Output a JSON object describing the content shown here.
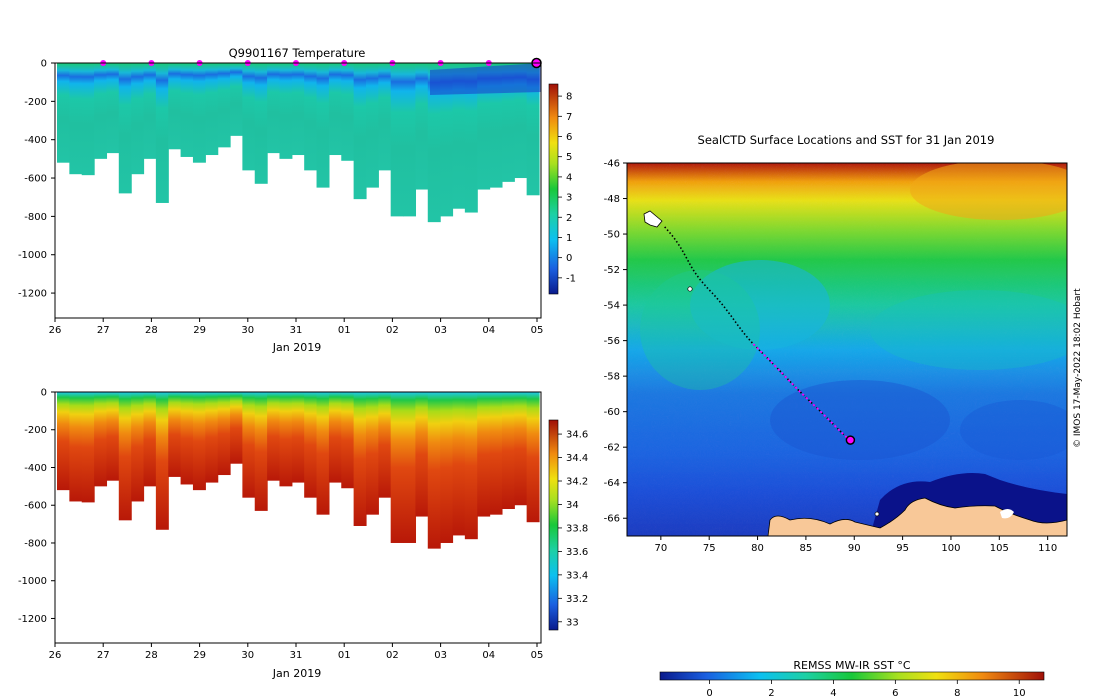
{
  "chart_data": [
    {
      "id": "temp",
      "type": "heatmap",
      "title": "Q9901167  Temperature",
      "xlabel": "Jan 2019",
      "ylabel": "",
      "x_ticks": [
        "26",
        "27",
        "28",
        "29",
        "30",
        "31",
        "01",
        "02",
        "03",
        "04",
        "05"
      ],
      "y_ticks": [
        0,
        -200,
        -400,
        -600,
        -800,
        -1000,
        -1200
      ],
      "ylim": [
        -1330,
        0
      ],
      "colorbar": {
        "min": -1.8,
        "max": 8.6,
        "ticks": [
          8,
          7,
          6,
          5,
          4,
          3,
          2,
          1,
          0,
          -1
        ]
      },
      "profile_markers_day": [
        1,
        2,
        3,
        4,
        5,
        6,
        7,
        8,
        9
      ],
      "final_marker_day": 9.99,
      "profile_depths": [
        520,
        580,
        585,
        500,
        470,
        680,
        580,
        500,
        730,
        450,
        490,
        520,
        480,
        440,
        380,
        560,
        630,
        470,
        500,
        480,
        560,
        650,
        480,
        510,
        710,
        650,
        560,
        800,
        800,
        660,
        830,
        800,
        760,
        780,
        660,
        650,
        620,
        600,
        690
      ]
    },
    {
      "id": "sal",
      "type": "heatmap",
      "title": "",
      "xlabel": "Jan 2019",
      "ylabel": "",
      "x_ticks": [
        "26",
        "27",
        "28",
        "29",
        "30",
        "31",
        "01",
        "02",
        "03",
        "04",
        "05"
      ],
      "y_ticks": [
        0,
        -200,
        -400,
        -600,
        -800,
        -1000,
        -1200
      ],
      "ylim": [
        -1330,
        0
      ],
      "colorbar": {
        "min": 32.93,
        "max": 34.72,
        "ticks": [
          "34.6",
          "34.4",
          "34.2",
          "34",
          "33.8",
          "33.6",
          "33.4",
          "33.2",
          "33"
        ]
      },
      "profile_depths": [
        520,
        580,
        585,
        500,
        470,
        680,
        580,
        500,
        730,
        450,
        490,
        520,
        480,
        440,
        380,
        560,
        630,
        470,
        500,
        480,
        560,
        650,
        480,
        510,
        710,
        650,
        560,
        800,
        800,
        660,
        830,
        800,
        760,
        780,
        660,
        650,
        620,
        600,
        690
      ]
    },
    {
      "id": "map",
      "type": "heatmap",
      "title": "SealCTD Surface Locations and SST for 31 Jan 2019",
      "x_ticks": [
        "70",
        "75",
        "80",
        "85",
        "90",
        "95",
        "100",
        "105",
        "110"
      ],
      "y_ticks": [
        "-46",
        "-48",
        "-50",
        "-52",
        "-54",
        "-56",
        "-58",
        "-60",
        "-62",
        "-64",
        "-66"
      ],
      "xlim": [
        66.5,
        112
      ],
      "ylim": [
        -67,
        -46
      ],
      "track_start": [
        70.4,
        -49.6
      ],
      "track_end": [
        89.6,
        -61.6
      ],
      "colorbar": {
        "label": "REMSS MW-IR SST °C",
        "min": -1.6,
        "max": 10.8,
        "ticks": [
          "0",
          "2",
          "4",
          "6",
          "8",
          "10"
        ]
      }
    }
  ],
  "credit": "© IMOS 17-May-2022 18:02 Hobart"
}
